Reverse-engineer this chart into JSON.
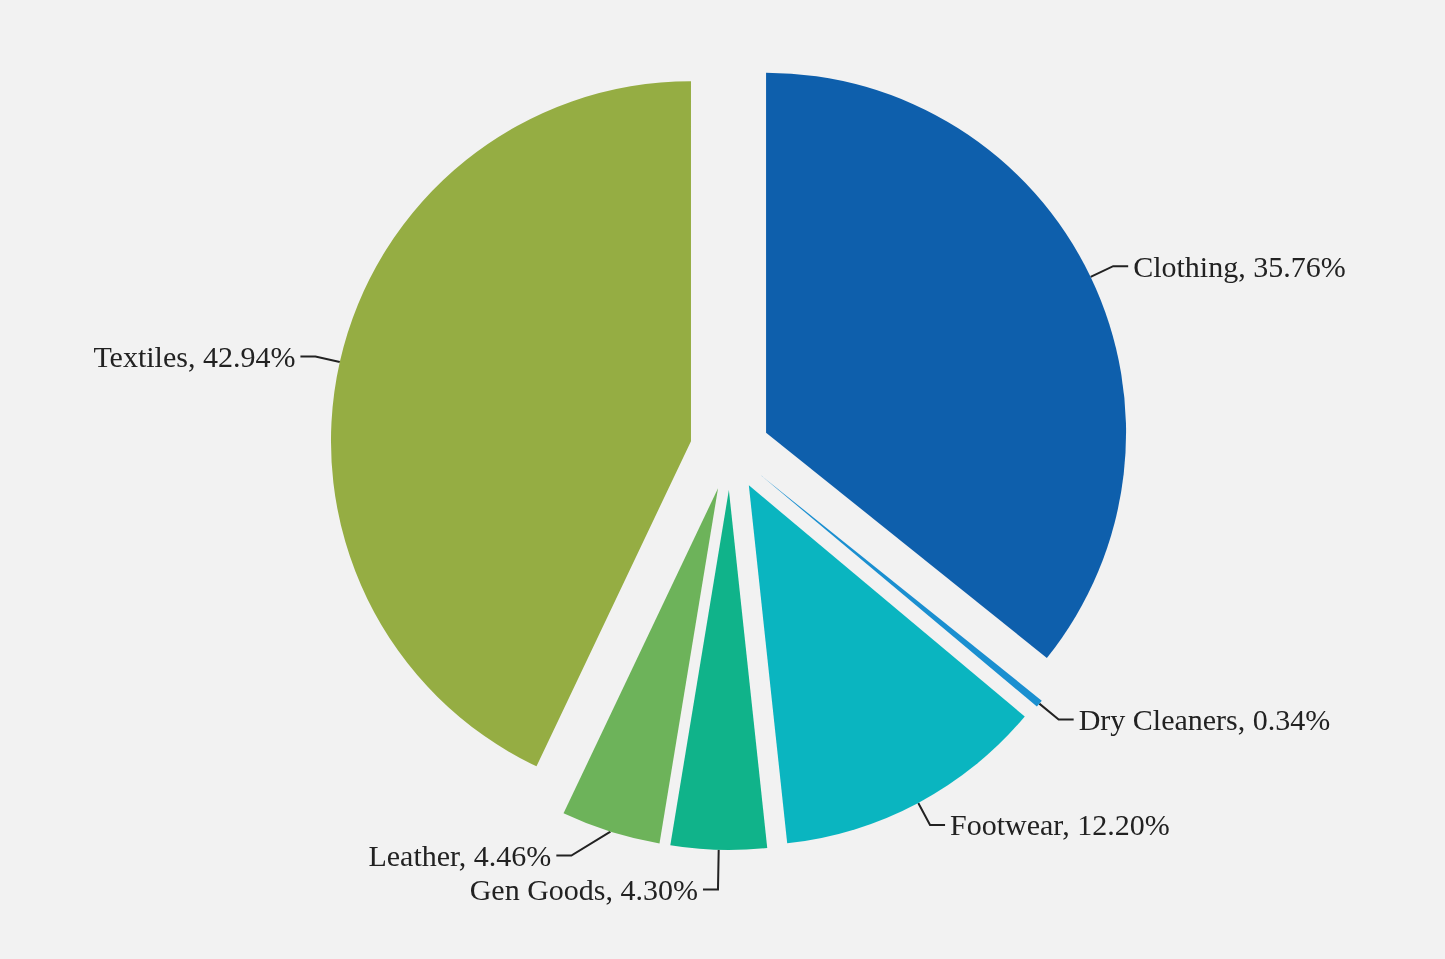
{
  "chart_data": {
    "type": "pie",
    "categories": [
      "Clothing",
      "Dry Cleaners",
      "Footwear",
      "Gen Goods",
      "Leather",
      "Textiles"
    ],
    "values": [
      35.76,
      0.34,
      12.2,
      4.3,
      4.46,
      42.94
    ],
    "value_labels": [
      "35.76%",
      "0.34%",
      "12.20%",
      "4.30%",
      "4.46%",
      "42.94%"
    ],
    "colors": [
      "#0e5fac",
      "#1a8fd0",
      "#0ab5c0",
      "#10b38a",
      "#6db35a",
      "#95ad43"
    ]
  }
}
